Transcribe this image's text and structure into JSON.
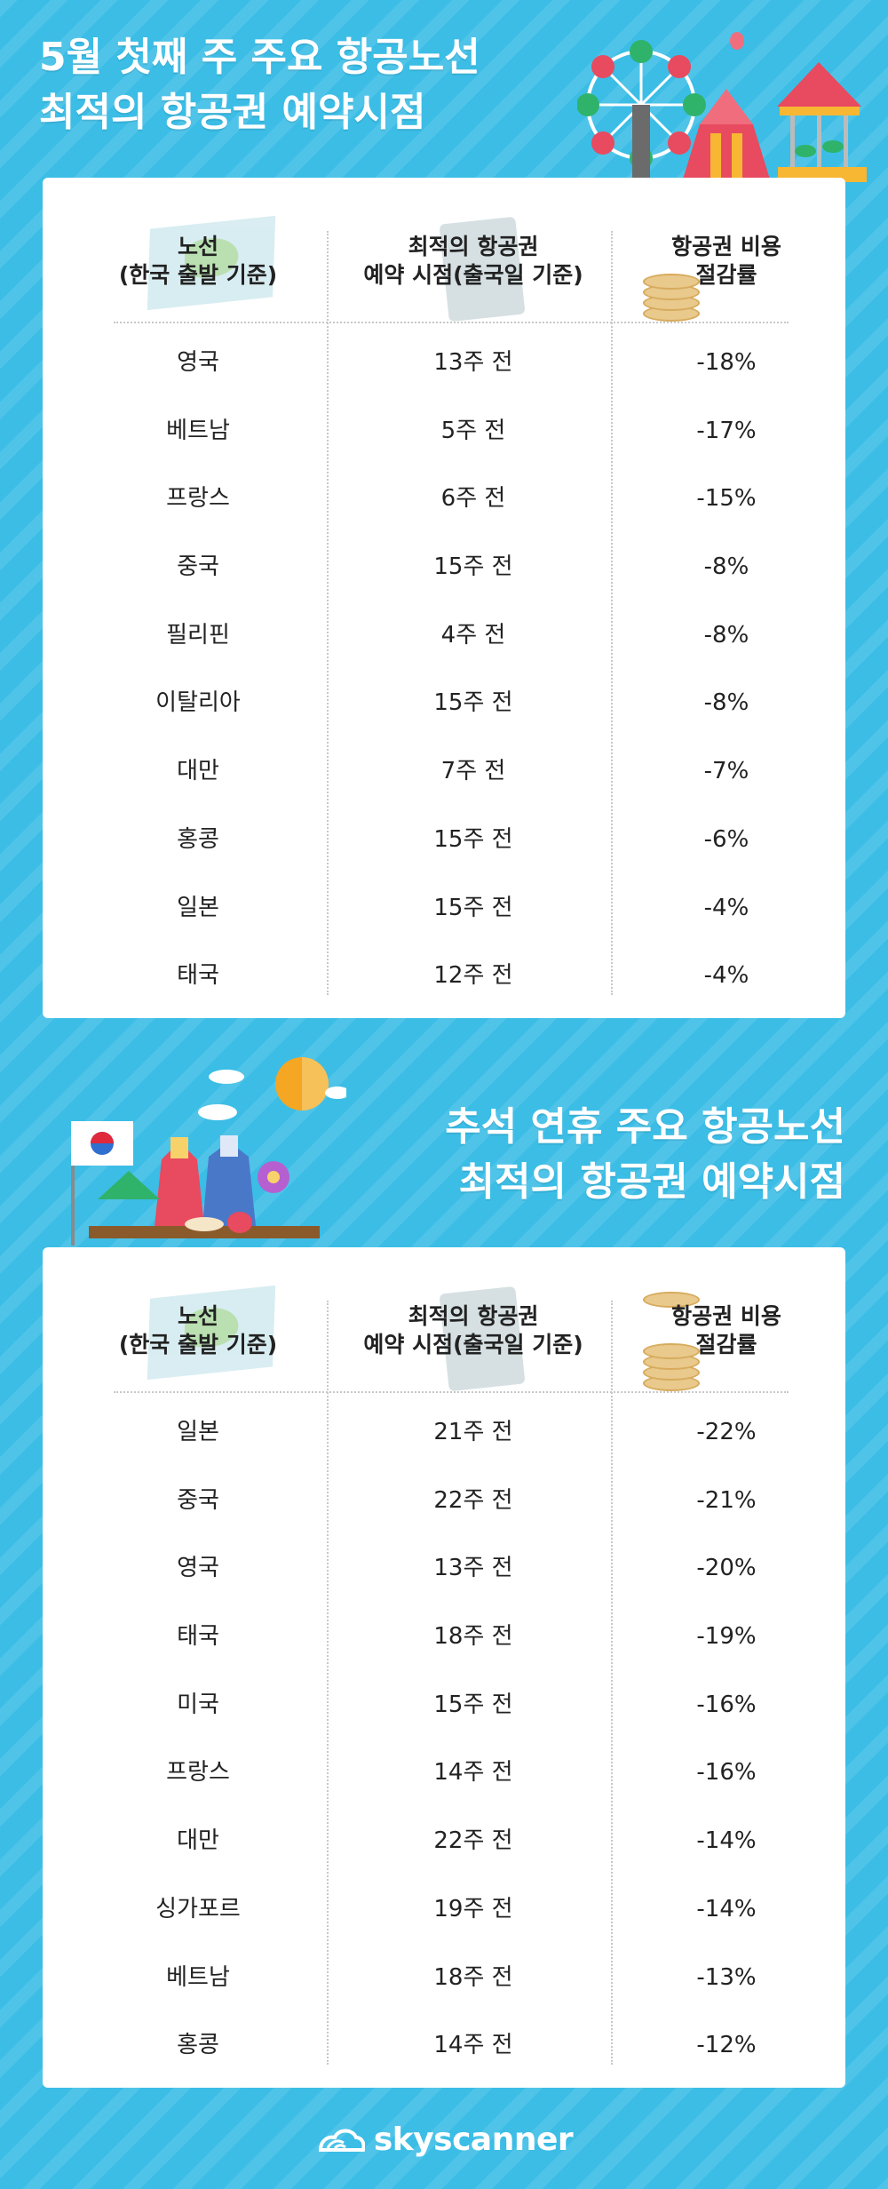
{
  "sections": [
    {
      "title_lines": [
        "5월 첫째 주 주요 항공노선",
        "최적의 항공권 예약시점"
      ],
      "headers": {
        "route": [
          "노선",
          "(한국 출발 기준)"
        ],
        "timing": [
          "최적의 항공권",
          "예약 시점(출국일 기준)"
        ],
        "saving": [
          "항공권 비용",
          "절감률"
        ]
      },
      "rows": [
        {
          "route": "영국",
          "timing": "13주 전",
          "saving": "-18%"
        },
        {
          "route": "베트남",
          "timing": "5주 전",
          "saving": "-17%"
        },
        {
          "route": "프랑스",
          "timing": "6주 전",
          "saving": "-15%"
        },
        {
          "route": "중국",
          "timing": "15주 전",
          "saving": "-8%"
        },
        {
          "route": "필리핀",
          "timing": "4주 전",
          "saving": "-8%"
        },
        {
          "route": "이탈리아",
          "timing": "15주 전",
          "saving": "-8%"
        },
        {
          "route": "대만",
          "timing": "7주 전",
          "saving": "-7%"
        },
        {
          "route": "홍콩",
          "timing": "15주 전",
          "saving": "-6%"
        },
        {
          "route": "일본",
          "timing": "15주 전",
          "saving": "-4%"
        },
        {
          "route": "태국",
          "timing": "12주 전",
          "saving": "-4%"
        }
      ]
    },
    {
      "title_lines": [
        "추석 연휴 주요 항공노선",
        "최적의 항공권 예약시점"
      ],
      "headers": {
        "route": [
          "노선",
          "(한국 출발 기준)"
        ],
        "timing": [
          "최적의 항공권",
          "예약 시점(출국일 기준)"
        ],
        "saving": [
          "항공권 비용",
          "절감률"
        ]
      },
      "rows": [
        {
          "route": "일본",
          "timing": "21주 전",
          "saving": "-22%"
        },
        {
          "route": "중국",
          "timing": "22주 전",
          "saving": "-21%"
        },
        {
          "route": "영국",
          "timing": "13주 전",
          "saving": "-20%"
        },
        {
          "route": "태국",
          "timing": "18주 전",
          "saving": "-19%"
        },
        {
          "route": "미국",
          "timing": "15주 전",
          "saving": "-16%"
        },
        {
          "route": "프랑스",
          "timing": "14주 전",
          "saving": "-16%"
        },
        {
          "route": "대만",
          "timing": "22주 전",
          "saving": "-14%"
        },
        {
          "route": "싱가포르",
          "timing": "19주 전",
          "saving": "-14%"
        },
        {
          "route": "베트남",
          "timing": "18주 전",
          "saving": "-13%"
        },
        {
          "route": "홍콩",
          "timing": "14주 전",
          "saving": "-12%"
        }
      ]
    }
  ],
  "footer": {
    "brand": "skyscanner"
  },
  "colors": {
    "background": "#3bbde6",
    "card": "#ffffff",
    "text": "#222222"
  },
  "icons": [
    "carnival-illustration",
    "hanbok-illustration",
    "map-icon",
    "boarding-pass-icon",
    "coin-stack-icon",
    "skyscanner-cloud-logo"
  ]
}
